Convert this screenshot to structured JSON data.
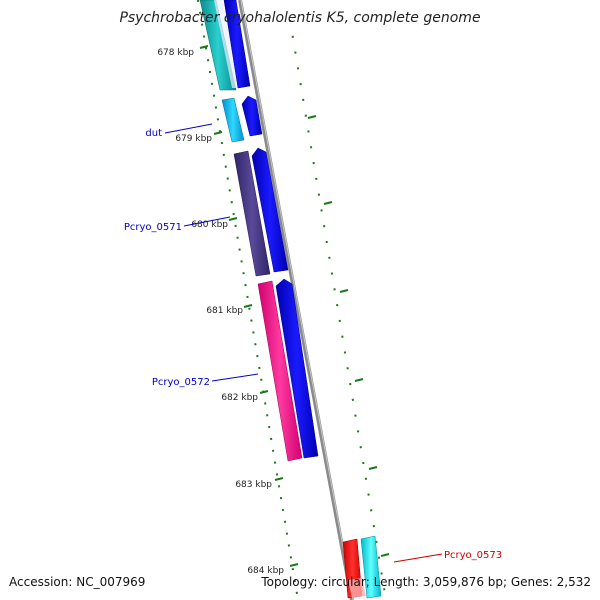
{
  "title": "Psychrobacter cryohalolentis K5, complete genome",
  "accession": "Accession: NC_007969",
  "summary": "Topology: circular; Length: 3,059,876 bp; Genes: 2,532",
  "ticks": [
    "678 kbp",
    "679 kbp",
    "680 kbp",
    "681 kbp",
    "682 kbp",
    "683 kbp",
    "684 kbp"
  ],
  "gene_labels": [
    {
      "text": "dut",
      "color": "#0000cc"
    },
    {
      "text": "Pcryo_0571",
      "color": "#0000cc"
    },
    {
      "text": "Pcryo_0572",
      "color": "#0000cc"
    },
    {
      "text": "Pcryo_0573",
      "color": "#cc0000"
    }
  ],
  "colors": {
    "backbone": "#8a8a8a",
    "ticks": "#1a7a1a",
    "cds": "#0000ee",
    "gene_teal": "#1ab0b0",
    "gene_cyan": "#00c8ff",
    "gene_purple": "#4a3a8a",
    "gene_pink": "#ff1a8c",
    "gene_red": "#ff0000",
    "gene_aqua": "#00e8f0"
  }
}
